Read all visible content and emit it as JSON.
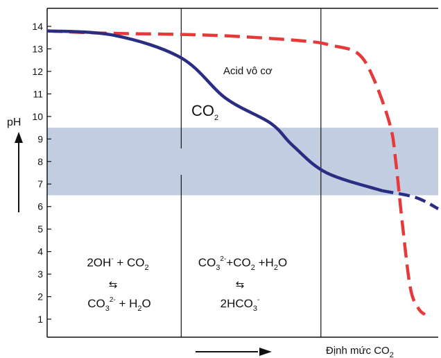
{
  "chart_data": {
    "type": "line",
    "ylabel": "pH",
    "xlabel_main": "Định mức CO",
    "xlabel_sub": "2",
    "ylim": [
      0.2,
      14.8
    ],
    "yticks": [
      1,
      2,
      3,
      4,
      5,
      6,
      7,
      8,
      9,
      10,
      11,
      12,
      13,
      14
    ],
    "band": {
      "from": 6.5,
      "to": 9.5,
      "color": "#c3cde2"
    },
    "regions": [
      {
        "top": [
          [
            "2OH",
            "",
            "-"
          ],
          [
            " + CO",
            "2",
            ""
          ]
        ],
        "arrow": "⇆",
        "bottom": [
          [
            "CO",
            "3",
            "2-"
          ],
          [
            " + H",
            "2",
            ""
          ],
          [
            "O",
            "",
            ""
          ]
        ]
      },
      {
        "top": [
          [
            "CO",
            "3",
            "2-"
          ],
          [
            "+CO",
            "2",
            ""
          ],
          [
            " +H",
            "2",
            ""
          ],
          [
            "O",
            "",
            ""
          ]
        ],
        "arrow": "⇆",
        "bottom": [
          [
            "2HCO",
            "3",
            "-"
          ]
        ]
      }
    ],
    "series": [
      {
        "name": "Acid vô cơ",
        "color": "#e63a3a",
        "style": "dashed",
        "x": [
          0,
          0.5,
          1.5,
          2.3,
          2.55,
          2.78,
          2.92,
          3.07,
          3.12,
          3.18,
          3.25,
          3.32,
          3.38
        ],
        "y": [
          13.8,
          13.7,
          13.6,
          13.35,
          13.15,
          12.8,
          11.7,
          9.6,
          8.0,
          5.2,
          2.4,
          1.5,
          1.2
        ]
      },
      {
        "name": "CO",
        "name_sub": "2",
        "color": "#2a2e82",
        "style": "solid",
        "x": [
          0,
          0.6,
          1.2,
          1.6,
          2.0,
          2.2,
          2.5,
          3.0
        ],
        "y": [
          13.8,
          13.6,
          12.6,
          10.8,
          9.7,
          8.7,
          7.5,
          6.7
        ]
      },
      {
        "name": "",
        "color": "#2a2e82",
        "style": "dashed",
        "x": [
          3.0,
          3.3,
          3.5
        ],
        "y": [
          6.7,
          6.4,
          5.9
        ]
      }
    ],
    "series_labels": [
      {
        "text": "Acid vô cơ",
        "sub": ""
      },
      {
        "text": "CO",
        "sub": "2"
      }
    ]
  }
}
